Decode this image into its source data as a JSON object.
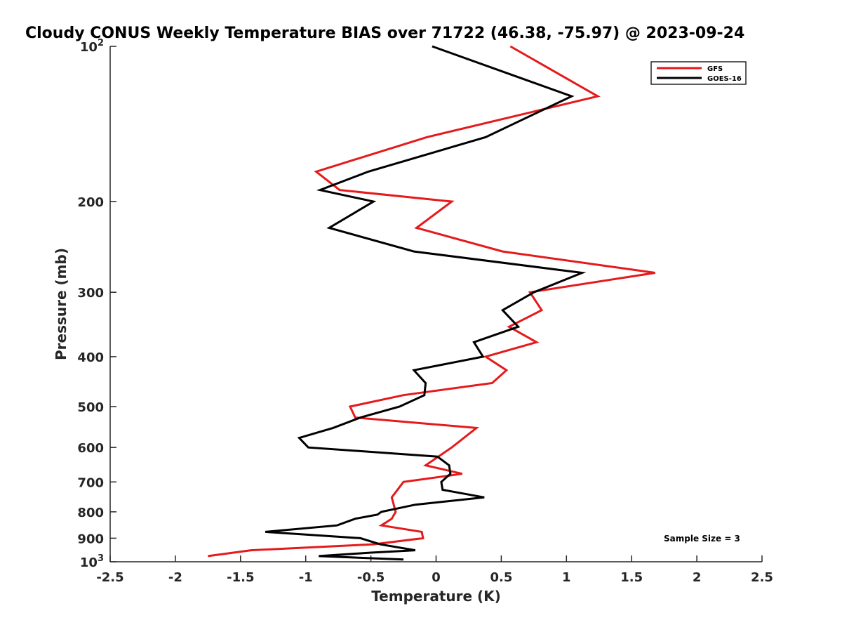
{
  "chart_data": {
    "type": "line",
    "title": "Cloudy CONUS Weekly Temperature BIAS over 71722 (46.38, -75.97) @ 2023-09-24",
    "xlabel": "Temperature (K)",
    "ylabel": "Pressure (mb)",
    "xlim": [
      -2.5,
      2.5
    ],
    "ylim": [
      100,
      1000
    ],
    "yscale": "log",
    "y_reversed": true,
    "grid": false,
    "legend_position": "top-right",
    "x_ticks": [
      "-2.5",
      "-2",
      "-1.5",
      "-1",
      "-0.5",
      "0",
      "0.5",
      "1",
      "1.5",
      "2",
      "2.5"
    ],
    "x_tick_values": [
      -2.5,
      -2,
      -1.5,
      -1,
      -0.5,
      0,
      0.5,
      1,
      1.5,
      2,
      2.5
    ],
    "y_ticks": [
      {
        "value": 100,
        "base": "10",
        "exp": "2"
      },
      {
        "value": 200,
        "label": "200"
      },
      {
        "value": 300,
        "label": "300"
      },
      {
        "value": 400,
        "label": "400"
      },
      {
        "value": 500,
        "label": "500"
      },
      {
        "value": 600,
        "label": "600"
      },
      {
        "value": 700,
        "label": "700"
      },
      {
        "value": 800,
        "label": "800"
      },
      {
        "value": 900,
        "label": "900"
      },
      {
        "value": 1000,
        "base": "10",
        "exp": "3"
      }
    ],
    "annotation": "Sample Size = 3",
    "series": [
      {
        "name": "GFS",
        "color": "#e41a1c",
        "points": [
          [
            0.57,
            100
          ],
          [
            1.24,
            125
          ],
          [
            -0.07,
            150
          ],
          [
            -0.92,
            175
          ],
          [
            -0.74,
            190
          ],
          [
            0.12,
            200
          ],
          [
            -0.15,
            225
          ],
          [
            0.51,
            250
          ],
          [
            1.68,
            275
          ],
          [
            0.72,
            300
          ],
          [
            0.81,
            325
          ],
          [
            0.56,
            350
          ],
          [
            0.77,
            375
          ],
          [
            0.38,
            400
          ],
          [
            0.54,
            425
          ],
          [
            0.43,
            450
          ],
          [
            -0.25,
            475
          ],
          [
            -0.66,
            500
          ],
          [
            -0.62,
            525
          ],
          [
            0.31,
            550
          ],
          [
            0.12,
            600
          ],
          [
            -0.08,
            650
          ],
          [
            0.2,
            675
          ],
          [
            -0.25,
            700
          ],
          [
            -0.34,
            750
          ],
          [
            -0.31,
            800
          ],
          [
            -0.34,
            825
          ],
          [
            -0.42,
            850
          ],
          [
            -0.11,
            875
          ],
          [
            -0.1,
            900
          ],
          [
            -0.48,
            925
          ],
          [
            -1.42,
            950
          ],
          [
            -1.75,
            975
          ]
        ]
      },
      {
        "name": "GOES-16",
        "color": "#000000",
        "points": [
          [
            -0.03,
            100
          ],
          [
            1.04,
            125
          ],
          [
            0.38,
            150
          ],
          [
            -0.52,
            175
          ],
          [
            -0.89,
            190
          ],
          [
            -0.48,
            200
          ],
          [
            -0.82,
            225
          ],
          [
            -0.17,
            250
          ],
          [
            1.12,
            275
          ],
          [
            0.75,
            300
          ],
          [
            0.51,
            325
          ],
          [
            0.63,
            350
          ],
          [
            0.29,
            375
          ],
          [
            0.36,
            400
          ],
          [
            -0.17,
            425
          ],
          [
            -0.08,
            450
          ],
          [
            -0.09,
            475
          ],
          [
            -0.28,
            500
          ],
          [
            -0.58,
            525
          ],
          [
            -0.79,
            550
          ],
          [
            -1.05,
            575
          ],
          [
            -0.98,
            600
          ],
          [
            0.01,
            625
          ],
          [
            0.1,
            650
          ],
          [
            0.11,
            675
          ],
          [
            0.04,
            700
          ],
          [
            0.05,
            725
          ],
          [
            0.37,
            750
          ],
          [
            -0.16,
            775
          ],
          [
            -0.42,
            800
          ],
          [
            -0.45,
            810
          ],
          [
            -0.62,
            825
          ],
          [
            -0.76,
            850
          ],
          [
            -1.31,
            875
          ],
          [
            -0.58,
            900
          ],
          [
            -0.43,
            925
          ],
          [
            -0.16,
            950
          ],
          [
            -0.5,
            960
          ],
          [
            -0.9,
            975
          ],
          [
            -0.25,
            990
          ]
        ]
      }
    ]
  }
}
